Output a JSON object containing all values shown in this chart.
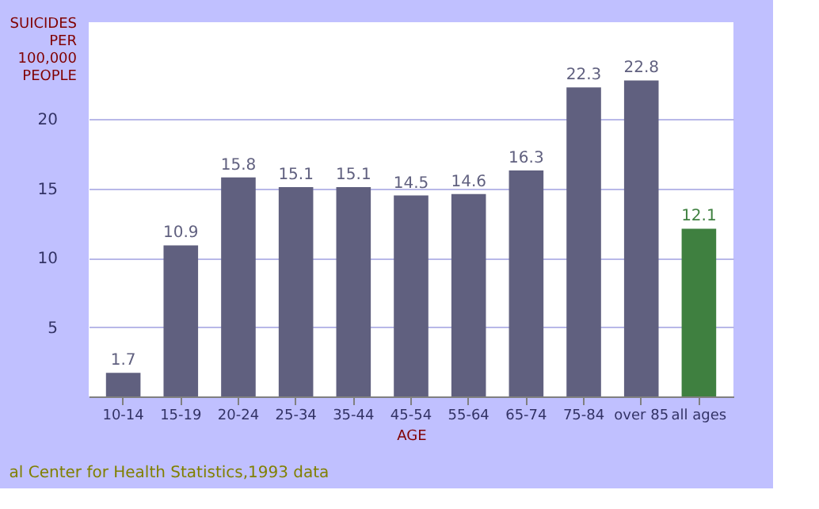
{
  "chart_data": {
    "type": "bar",
    "xlabel": "AGE",
    "ylabel": "SUICIDES PER 100,000 PEOPLE",
    "categories": [
      "10-14",
      "15-19",
      "20-24",
      "25-34",
      "35-44",
      "45-54",
      "55-64",
      "65-74",
      "75-84",
      "over 85",
      "all ages"
    ],
    "values": [
      1.7,
      10.9,
      15.8,
      15.1,
      15.1,
      14.5,
      14.6,
      16.3,
      22.3,
      22.8,
      12.1
    ],
    "colors": [
      "#60607f",
      "#60607f",
      "#60607f",
      "#60607f",
      "#60607f",
      "#60607f",
      "#60607f",
      "#60607f",
      "#60607f",
      "#60607f",
      "#3f8040"
    ],
    "ylim": [
      0,
      27
    ],
    "yticks": [
      5,
      10,
      15,
      20
    ],
    "grid": "y",
    "data_labels": true,
    "annotations": [
      "al Center for Health Statistics,1993 data"
    ]
  }
}
